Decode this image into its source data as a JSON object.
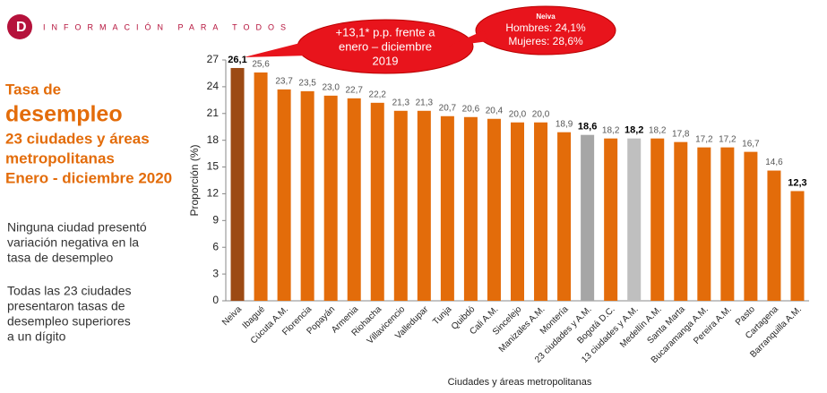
{
  "header": {
    "brand": "INFORMACIÓN PARA TODOS"
  },
  "side": {
    "title_lines": [
      "Tasa de",
      "desempleo",
      "23 ciudades y áreas",
      "metropolitanas",
      "Enero - diciembre 2020"
    ],
    "note_1": [
      "Ninguna ciudad presentó",
      "variación negativa en la",
      "tasa de desempleo"
    ],
    "note_2": [
      "Todas las 23 ciudades",
      "presentaron tasas de",
      "desempleo superiores",
      "a un dígito"
    ]
  },
  "callouts": {
    "national": [
      "+13,1* p.p. frente a",
      "enero – diciembre",
      "2019"
    ],
    "neiva": {
      "title": "Neiva",
      "lines": [
        "Hombres: 24,1%",
        "Mujeres: 28,6%"
      ]
    }
  },
  "chart_data": {
    "type": "bar",
    "x_label": "Ciudades y áreas metropolitanas",
    "y_label": "Proporción (%)",
    "categories": [
      "Neiva",
      "Ibagué",
      "Cúcuta A.M.",
      "Florencia",
      "Popayán",
      "Armenia",
      "Riohacha",
      "Villavicencio",
      "Valledupar",
      "Tunja",
      "Quibdó",
      "Cali A.M.",
      "Sincelejo",
      "Manizales A.M.",
      "Montería",
      "23 ciudades y A.M.",
      "Bogotá  D.C.",
      "13 ciudades y A.M.",
      "Medellín A.M.",
      "Santa Marta",
      "Bucaramanga A.M.",
      "Pereira A.M.",
      "Pasto",
      "Cartagena",
      "Barranquilla A.M."
    ],
    "values": [
      26.1,
      25.6,
      23.7,
      23.5,
      23.0,
      22.7,
      22.2,
      21.3,
      21.3,
      20.7,
      20.6,
      20.4,
      20.0,
      20.0,
      18.9,
      18.6,
      18.2,
      18.2,
      18.2,
      17.8,
      17.2,
      17.2,
      16.7,
      14.6,
      12.3
    ],
    "value_labels": [
      "26,1",
      "25,6",
      "23,7",
      "23,5",
      "23,0",
      "22,7",
      "22,2",
      "21,3",
      "21,3",
      "20,7",
      "20,6",
      "20,4",
      "20,0",
      "20,0",
      "18,9",
      "18,6",
      "18,2",
      "18,2",
      "18,2",
      "17,8",
      "17,2",
      "17,2",
      "16,7",
      "14,6",
      "12,3"
    ],
    "colors": [
      "#9c4a14",
      "#e36c0a",
      "#e36c0a",
      "#e36c0a",
      "#e36c0a",
      "#e36c0a",
      "#e36c0a",
      "#e36c0a",
      "#e36c0a",
      "#e36c0a",
      "#e36c0a",
      "#e36c0a",
      "#e36c0a",
      "#e36c0a",
      "#e36c0a",
      "#a6a6a6",
      "#e36c0a",
      "#bfbfbf",
      "#e36c0a",
      "#e36c0a",
      "#e36c0a",
      "#e36c0a",
      "#e36c0a",
      "#e36c0a",
      "#e36c0a"
    ],
    "label_bold": [
      true,
      false,
      false,
      false,
      false,
      false,
      false,
      false,
      false,
      false,
      false,
      false,
      false,
      false,
      false,
      true,
      false,
      true,
      false,
      false,
      false,
      false,
      false,
      false,
      true
    ],
    "ylim": [
      0,
      27
    ],
    "yticks": [
      0,
      3,
      6,
      9,
      12,
      15,
      18,
      21,
      24,
      27
    ]
  }
}
